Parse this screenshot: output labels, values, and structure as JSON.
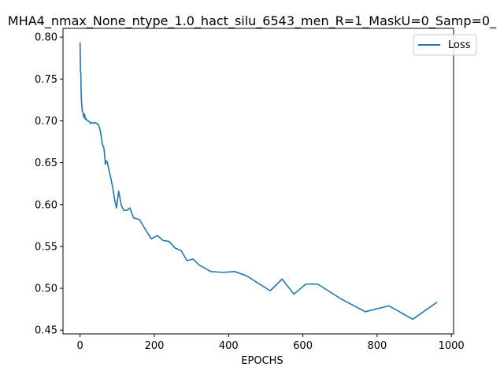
{
  "chart_data": {
    "type": "line",
    "title": "MHA4_nmax_None_ntype_1.0_hact_silu_6543_men_R=1_MaskU=0_Samp=0_",
    "xlabel": "EPOCHS",
    "ylabel": "",
    "xlim": [
      -46,
      1006
    ],
    "ylim": [
      0.4455,
      0.8105
    ],
    "xticks": [
      0,
      200,
      400,
      600,
      800,
      1000
    ],
    "yticks": [
      0.45,
      0.5,
      0.55,
      0.6,
      0.65,
      0.7,
      0.75,
      0.8
    ],
    "xtick_labels": [
      "0",
      "200",
      "400",
      "600",
      "800",
      "1000"
    ],
    "ytick_labels": [
      "0.45",
      "0.50",
      "0.55",
      "0.60",
      "0.65",
      "0.70",
      "0.75",
      "0.80"
    ],
    "legend_position": "top-right",
    "grid": false,
    "series": [
      {
        "name": "Loss",
        "color": "#1f77b4",
        "x": [
          0,
          1,
          2,
          3,
          4,
          6,
          8,
          10,
          12,
          14,
          16,
          18,
          20,
          22,
          25,
          28,
          32,
          36,
          40,
          45,
          50,
          55,
          60,
          64,
          66,
          68,
          70,
          72,
          74,
          78,
          83,
          88,
          93,
          98,
          104,
          111,
          118,
          126,
          134,
          144,
          160,
          176,
          192,
          208,
          224,
          240,
          256,
          272,
          288,
          304,
          320,
          352,
          384,
          416,
          448,
          480,
          512,
          544,
          576,
          608,
          640,
          704,
          768,
          832,
          896,
          960
        ],
        "y": [
          0.793,
          0.76,
          0.757,
          0.733,
          0.722,
          0.711,
          0.71,
          0.704,
          0.708,
          0.702,
          0.703,
          0.701,
          0.7,
          0.7,
          0.699,
          0.697,
          0.698,
          0.697,
          0.698,
          0.697,
          0.695,
          0.687,
          0.672,
          0.668,
          0.66,
          0.648,
          0.652,
          0.652,
          0.649,
          0.641,
          0.631,
          0.62,
          0.606,
          0.596,
          0.616,
          0.599,
          0.593,
          0.593,
          0.596,
          0.584,
          0.582,
          0.57,
          0.559,
          0.563,
          0.557,
          0.556,
          0.548,
          0.545,
          0.533,
          0.535,
          0.528,
          0.52,
          0.519,
          0.52,
          0.515,
          0.506,
          0.497,
          0.511,
          0.493,
          0.505,
          0.505,
          0.487,
          0.472,
          0.479,
          0.463,
          0.483
        ]
      }
    ]
  }
}
